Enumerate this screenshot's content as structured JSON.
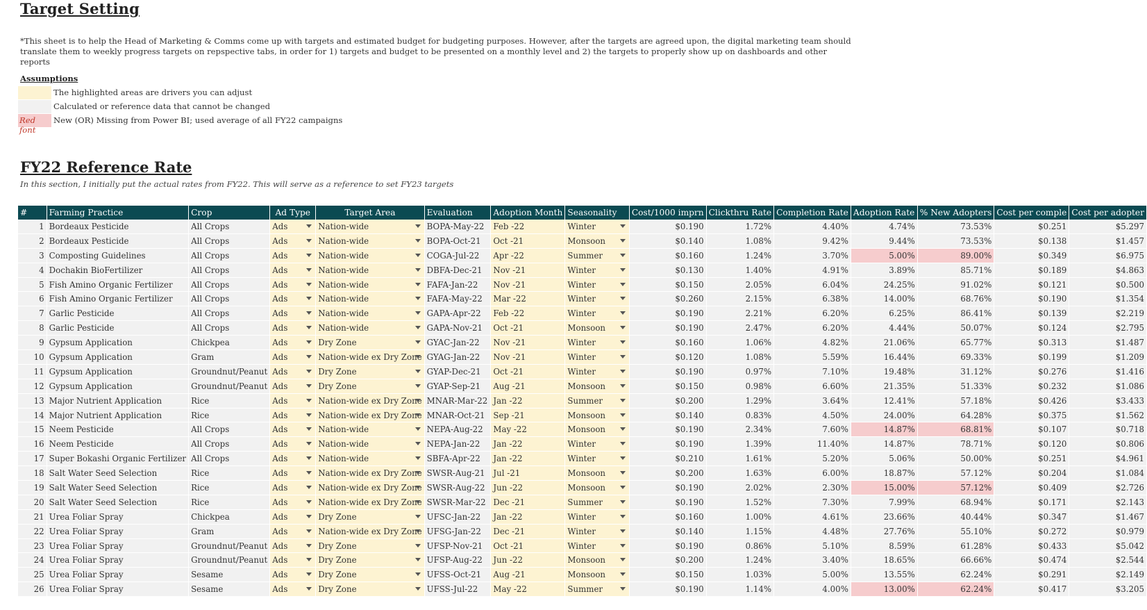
{
  "sheet": {
    "title": "Target Setting",
    "note": "*This sheet is to help the Head of Marketing & Comms come up with targets and estimated budget for budgeting purposes. However, after the targets are agreed upon, the digital marketing team should translate them to weekly progress targets on repspective tabs, in order for 1) targets and budget to be presented on a monthly level and 2) the targets to properly show up on dashboards and other reports",
    "assumptions_heading": "Assumptions",
    "legend": [
      {
        "swatch_text": "",
        "label": "The highlighted areas are drivers you can adjust",
        "color": "#fdf3d2"
      },
      {
        "swatch_text": "",
        "label": "Calculated or reference data that cannot be changed",
        "color": "#f1f1f1"
      },
      {
        "swatch_text": "Red font",
        "label": "New (OR) Missing from Power BI; used average of all FY22 campaigns",
        "color": "#f6cccd"
      }
    ],
    "section_title": "FY22 Reference Rate",
    "section_subtitle": "In this section, I initially put the actual rates from FY22. This will serve as a reference to set FY23 targets"
  },
  "colors": {
    "header_bg": "#0b4a52",
    "driver_bg": "#fdf3d2",
    "calc_bg": "#f1f1f1",
    "flag_bg": "#f6cccd",
    "flag_text": "#c0392b"
  },
  "table": {
    "headers": [
      "#",
      "Farming Practice",
      "Crop",
      "Ad Type",
      "Target Area",
      "Evaluation",
      "Adoption Month",
      "Seasonality",
      "Cost/1000 imprn",
      "Clickthru Rate",
      "Completion Rate",
      "Adoption Rate",
      "% New Adopters",
      "Cost per comple",
      "Cost per adopter"
    ],
    "rows": [
      {
        "n": "1",
        "practice": "Bordeaux Pesticide",
        "crop": "All Crops",
        "ad": "Ads",
        "area": "Nation-wide",
        "eval": "BOPA-May-22",
        "month": "Feb -22",
        "season": "Winter",
        "cpm": "$0.190",
        "ctr": "1.72%",
        "comp": "4.40%",
        "adopt": "4.74%",
        "newad": "73.53%",
        "cpc": "$0.251",
        "cpa": "$5.297",
        "flag_adopt": false,
        "flag_new": false
      },
      {
        "n": "2",
        "practice": "Bordeaux Pesticide",
        "crop": "All Crops",
        "ad": "Ads",
        "area": "Nation-wide",
        "eval": "BOPA-Oct-21",
        "month": "Oct -21",
        "season": "Monsoon",
        "cpm": "$0.140",
        "ctr": "1.08%",
        "comp": "9.42%",
        "adopt": "9.44%",
        "newad": "73.53%",
        "cpc": "$0.138",
        "cpa": "$1.457",
        "flag_adopt": false,
        "flag_new": false
      },
      {
        "n": "3",
        "practice": "Composting Guidelines",
        "crop": "All Crops",
        "ad": "Ads",
        "area": "Nation-wide",
        "eval": "COGA-Jul-22",
        "month": "Apr -22",
        "season": "Summer",
        "cpm": "$0.160",
        "ctr": "1.24%",
        "comp": "3.70%",
        "adopt": "5.00%",
        "newad": "89.00%",
        "cpc": "$0.349",
        "cpa": "$6.975",
        "flag_adopt": true,
        "flag_new": true
      },
      {
        "n": "4",
        "practice": "Dochakin BioFertilizer",
        "crop": "All Crops",
        "ad": "Ads",
        "area": "Nation-wide",
        "eval": "DBFA-Dec-21",
        "month": "Nov -21",
        "season": "Winter",
        "cpm": "$0.130",
        "ctr": "1.40%",
        "comp": "4.91%",
        "adopt": "3.89%",
        "newad": "85.71%",
        "cpc": "$0.189",
        "cpa": "$4.863",
        "flag_adopt": false,
        "flag_new": false
      },
      {
        "n": "5",
        "practice": "Fish Amino Organic Fertilizer",
        "crop": "All Crops",
        "ad": "Ads",
        "area": "Nation-wide",
        "eval": "FAFA-Jan-22",
        "month": "Nov -21",
        "season": "Winter",
        "cpm": "$0.150",
        "ctr": "2.05%",
        "comp": "6.04%",
        "adopt": "24.25%",
        "newad": "91.02%",
        "cpc": "$0.121",
        "cpa": "$0.500",
        "flag_adopt": false,
        "flag_new": false
      },
      {
        "n": "6",
        "practice": "Fish Amino Organic Fertilizer",
        "crop": "All Crops",
        "ad": "Ads",
        "area": "Nation-wide",
        "eval": "FAFA-May-22",
        "month": "Mar -22",
        "season": "Winter",
        "cpm": "$0.260",
        "ctr": "2.15%",
        "comp": "6.38%",
        "adopt": "14.00%",
        "newad": "68.76%",
        "cpc": "$0.190",
        "cpa": "$1.354",
        "flag_adopt": false,
        "flag_new": false
      },
      {
        "n": "7",
        "practice": "Garlic Pesticide",
        "crop": "All Crops",
        "ad": "Ads",
        "area": "Nation-wide",
        "eval": "GAPA-Apr-22",
        "month": "Feb -22",
        "season": "Winter",
        "cpm": "$0.190",
        "ctr": "2.21%",
        "comp": "6.20%",
        "adopt": "6.25%",
        "newad": "86.41%",
        "cpc": "$0.139",
        "cpa": "$2.219",
        "flag_adopt": false,
        "flag_new": false
      },
      {
        "n": "8",
        "practice": "Garlic Pesticide",
        "crop": "All Crops",
        "ad": "Ads",
        "area": "Nation-wide",
        "eval": "GAPA-Nov-21",
        "month": "Oct -21",
        "season": "Monsoon",
        "cpm": "$0.190",
        "ctr": "2.47%",
        "comp": "6.20%",
        "adopt": "4.44%",
        "newad": "50.07%",
        "cpc": "$0.124",
        "cpa": "$2.795",
        "flag_adopt": false,
        "flag_new": false
      },
      {
        "n": "9",
        "practice": "Gypsum Application",
        "crop": "Chickpea",
        "ad": "Ads",
        "area": "Dry Zone",
        "eval": "GYAC-Jan-22",
        "month": "Nov -21",
        "season": "Winter",
        "cpm": "$0.160",
        "ctr": "1.06%",
        "comp": "4.82%",
        "adopt": "21.06%",
        "newad": "65.77%",
        "cpc": "$0.313",
        "cpa": "$1.487",
        "flag_adopt": false,
        "flag_new": false
      },
      {
        "n": "10",
        "practice": "Gypsum Application",
        "crop": "Gram",
        "ad": "Ads",
        "area": "Nation-wide ex Dry Zone",
        "eval": "GYAG-Jan-22",
        "month": "Nov -21",
        "season": "Winter",
        "cpm": "$0.120",
        "ctr": "1.08%",
        "comp": "5.59%",
        "adopt": "16.44%",
        "newad": "69.33%",
        "cpc": "$0.199",
        "cpa": "$1.209",
        "flag_adopt": false,
        "flag_new": false
      },
      {
        "n": "11",
        "practice": "Gypsum Application",
        "crop": "Groundnut/Peanut",
        "ad": "Ads",
        "area": "Dry Zone",
        "eval": "GYAP-Dec-21",
        "month": "Oct -21",
        "season": "Winter",
        "cpm": "$0.190",
        "ctr": "0.97%",
        "comp": "7.10%",
        "adopt": "19.48%",
        "newad": "31.12%",
        "cpc": "$0.276",
        "cpa": "$1.416",
        "flag_adopt": false,
        "flag_new": false
      },
      {
        "n": "12",
        "practice": "Gypsum Application",
        "crop": "Groundnut/Peanut",
        "ad": "Ads",
        "area": "Dry Zone",
        "eval": "GYAP-Sep-21",
        "month": "Aug -21",
        "season": "Monsoon",
        "cpm": "$0.150",
        "ctr": "0.98%",
        "comp": "6.60%",
        "adopt": "21.35%",
        "newad": "51.33%",
        "cpc": "$0.232",
        "cpa": "$1.086",
        "flag_adopt": false,
        "flag_new": false
      },
      {
        "n": "13",
        "practice": "Major Nutrient Application",
        "crop": "Rice",
        "ad": "Ads",
        "area": "Nation-wide ex Dry Zone",
        "eval": "MNAR-Mar-22",
        "month": "Jan -22",
        "season": "Summer",
        "cpm": "$0.200",
        "ctr": "1.29%",
        "comp": "3.64%",
        "adopt": "12.41%",
        "newad": "57.18%",
        "cpc": "$0.426",
        "cpa": "$3.433",
        "flag_adopt": false,
        "flag_new": false
      },
      {
        "n": "14",
        "practice": "Major Nutrient Application",
        "crop": "Rice",
        "ad": "Ads",
        "area": "Nation-wide ex Dry Zone",
        "eval": "MNAR-Oct-21",
        "month": "Sep -21",
        "season": "Monsoon",
        "cpm": "$0.140",
        "ctr": "0.83%",
        "comp": "4.50%",
        "adopt": "24.00%",
        "newad": "64.28%",
        "cpc": "$0.375",
        "cpa": "$1.562",
        "flag_adopt": false,
        "flag_new": false
      },
      {
        "n": "15",
        "practice": "Neem Pesticide",
        "crop": "All Crops",
        "ad": "Ads",
        "area": "Nation-wide",
        "eval": "NEPA-Aug-22",
        "month": "May -22",
        "season": "Monsoon",
        "cpm": "$0.190",
        "ctr": "2.34%",
        "comp": "7.60%",
        "adopt": "14.87%",
        "newad": "68.81%",
        "cpc": "$0.107",
        "cpa": "$0.718",
        "flag_adopt": true,
        "flag_new": true
      },
      {
        "n": "16",
        "practice": "Neem Pesticide",
        "crop": "All Crops",
        "ad": "Ads",
        "area": "Nation-wide",
        "eval": "NEPA-Jan-22",
        "month": "Jan -22",
        "season": "Winter",
        "cpm": "$0.190",
        "ctr": "1.39%",
        "comp": "11.40%",
        "adopt": "14.87%",
        "newad": "78.71%",
        "cpc": "$0.120",
        "cpa": "$0.806",
        "flag_adopt": false,
        "flag_new": false
      },
      {
        "n": "17",
        "practice": "Super Bokashi Organic Fertilizer",
        "crop": "All Crops",
        "ad": "Ads",
        "area": "Nation-wide",
        "eval": "SBFA-Apr-22",
        "month": "Jan -22",
        "season": "Winter",
        "cpm": "$0.210",
        "ctr": "1.61%",
        "comp": "5.20%",
        "adopt": "5.06%",
        "newad": "50.00%",
        "cpc": "$0.251",
        "cpa": "$4.961",
        "flag_adopt": false,
        "flag_new": false
      },
      {
        "n": "18",
        "practice": "Salt Water Seed Selection",
        "crop": "Rice",
        "ad": "Ads",
        "area": "Nation-wide ex Dry Zone",
        "eval": "SWSR-Aug-21",
        "month": "Jul -21",
        "season": "Monsoon",
        "cpm": "$0.200",
        "ctr": "1.63%",
        "comp": "6.00%",
        "adopt": "18.87%",
        "newad": "57.12%",
        "cpc": "$0.204",
        "cpa": "$1.084",
        "flag_adopt": false,
        "flag_new": false
      },
      {
        "n": "19",
        "practice": "Salt Water Seed Selection",
        "crop": "Rice",
        "ad": "Ads",
        "area": "Nation-wide ex Dry Zone",
        "eval": "SWSR-Aug-22",
        "month": "Jun -22",
        "season": "Monsoon",
        "cpm": "$0.190",
        "ctr": "2.02%",
        "comp": "2.30%",
        "adopt": "15.00%",
        "newad": "57.12%",
        "cpc": "$0.409",
        "cpa": "$2.726",
        "flag_adopt": true,
        "flag_new": true
      },
      {
        "n": "20",
        "practice": "Salt Water Seed Selection",
        "crop": "Rice",
        "ad": "Ads",
        "area": "Nation-wide ex Dry Zone",
        "eval": "SWSR-Mar-22",
        "month": "Dec -21",
        "season": "Summer",
        "cpm": "$0.190",
        "ctr": "1.52%",
        "comp": "7.30%",
        "adopt": "7.99%",
        "newad": "68.94%",
        "cpc": "$0.171",
        "cpa": "$2.143",
        "flag_adopt": false,
        "flag_new": false
      },
      {
        "n": "21",
        "practice": "Urea Foliar Spray",
        "crop": "Chickpea",
        "ad": "Ads",
        "area": "Dry Zone",
        "eval": "UFSC-Jan-22",
        "month": "Jan -22",
        "season": "Winter",
        "cpm": "$0.160",
        "ctr": "1.00%",
        "comp": "4.61%",
        "adopt": "23.66%",
        "newad": "40.44%",
        "cpc": "$0.347",
        "cpa": "$1.467",
        "flag_adopt": false,
        "flag_new": false
      },
      {
        "n": "22",
        "practice": "Urea Foliar Spray",
        "crop": "Gram",
        "ad": "Ads",
        "area": "Nation-wide ex Dry Zone",
        "eval": "UFSG-Jan-22",
        "month": "Dec -21",
        "season": "Winter",
        "cpm": "$0.140",
        "ctr": "1.15%",
        "comp": "4.48%",
        "adopt": "27.76%",
        "newad": "55.10%",
        "cpc": "$0.272",
        "cpa": "$0.979",
        "flag_adopt": false,
        "flag_new": false
      },
      {
        "n": "23",
        "practice": "Urea Foliar Spray",
        "crop": "Groundnut/Peanut",
        "ad": "Ads",
        "area": "Dry Zone",
        "eval": "UFSP-Nov-21",
        "month": "Oct -21",
        "season": "Winter",
        "cpm": "$0.190",
        "ctr": "0.86%",
        "comp": "5.10%",
        "adopt": "8.59%",
        "newad": "61.28%",
        "cpc": "$0.433",
        "cpa": "$5.042",
        "flag_adopt": false,
        "flag_new": false
      },
      {
        "n": "24",
        "practice": "Urea Foliar Spray",
        "crop": "Groundnut/Peanut",
        "ad": "Ads",
        "area": "Dry Zone",
        "eval": "UFSP-Aug-22",
        "month": "Jun -22",
        "season": "Monsoon",
        "cpm": "$0.200",
        "ctr": "1.24%",
        "comp": "3.40%",
        "adopt": "18.65%",
        "newad": "66.66%",
        "cpc": "$0.474",
        "cpa": "$2.544",
        "flag_adopt": false,
        "flag_new": false
      },
      {
        "n": "25",
        "practice": "Urea Foliar Spray",
        "crop": "Sesame",
        "ad": "Ads",
        "area": "Dry Zone",
        "eval": "UFSS-Oct-21",
        "month": "Aug -21",
        "season": "Monsoon",
        "cpm": "$0.150",
        "ctr": "1.03%",
        "comp": "5.00%",
        "adopt": "13.55%",
        "newad": "62.24%",
        "cpc": "$0.291",
        "cpa": "$2.149",
        "flag_adopt": false,
        "flag_new": false
      },
      {
        "n": "26",
        "practice": "Urea Foliar Spray",
        "crop": "Sesame",
        "ad": "Ads",
        "area": "Dry Zone",
        "eval": "UFSS-Jul-22",
        "month": "May -22",
        "season": "Summer",
        "cpm": "$0.190",
        "ctr": "1.14%",
        "comp": "4.00%",
        "adopt": "13.00%",
        "newad": "62.24%",
        "cpc": "$0.417",
        "cpa": "$3.205",
        "flag_adopt": true,
        "flag_new": true
      }
    ]
  }
}
